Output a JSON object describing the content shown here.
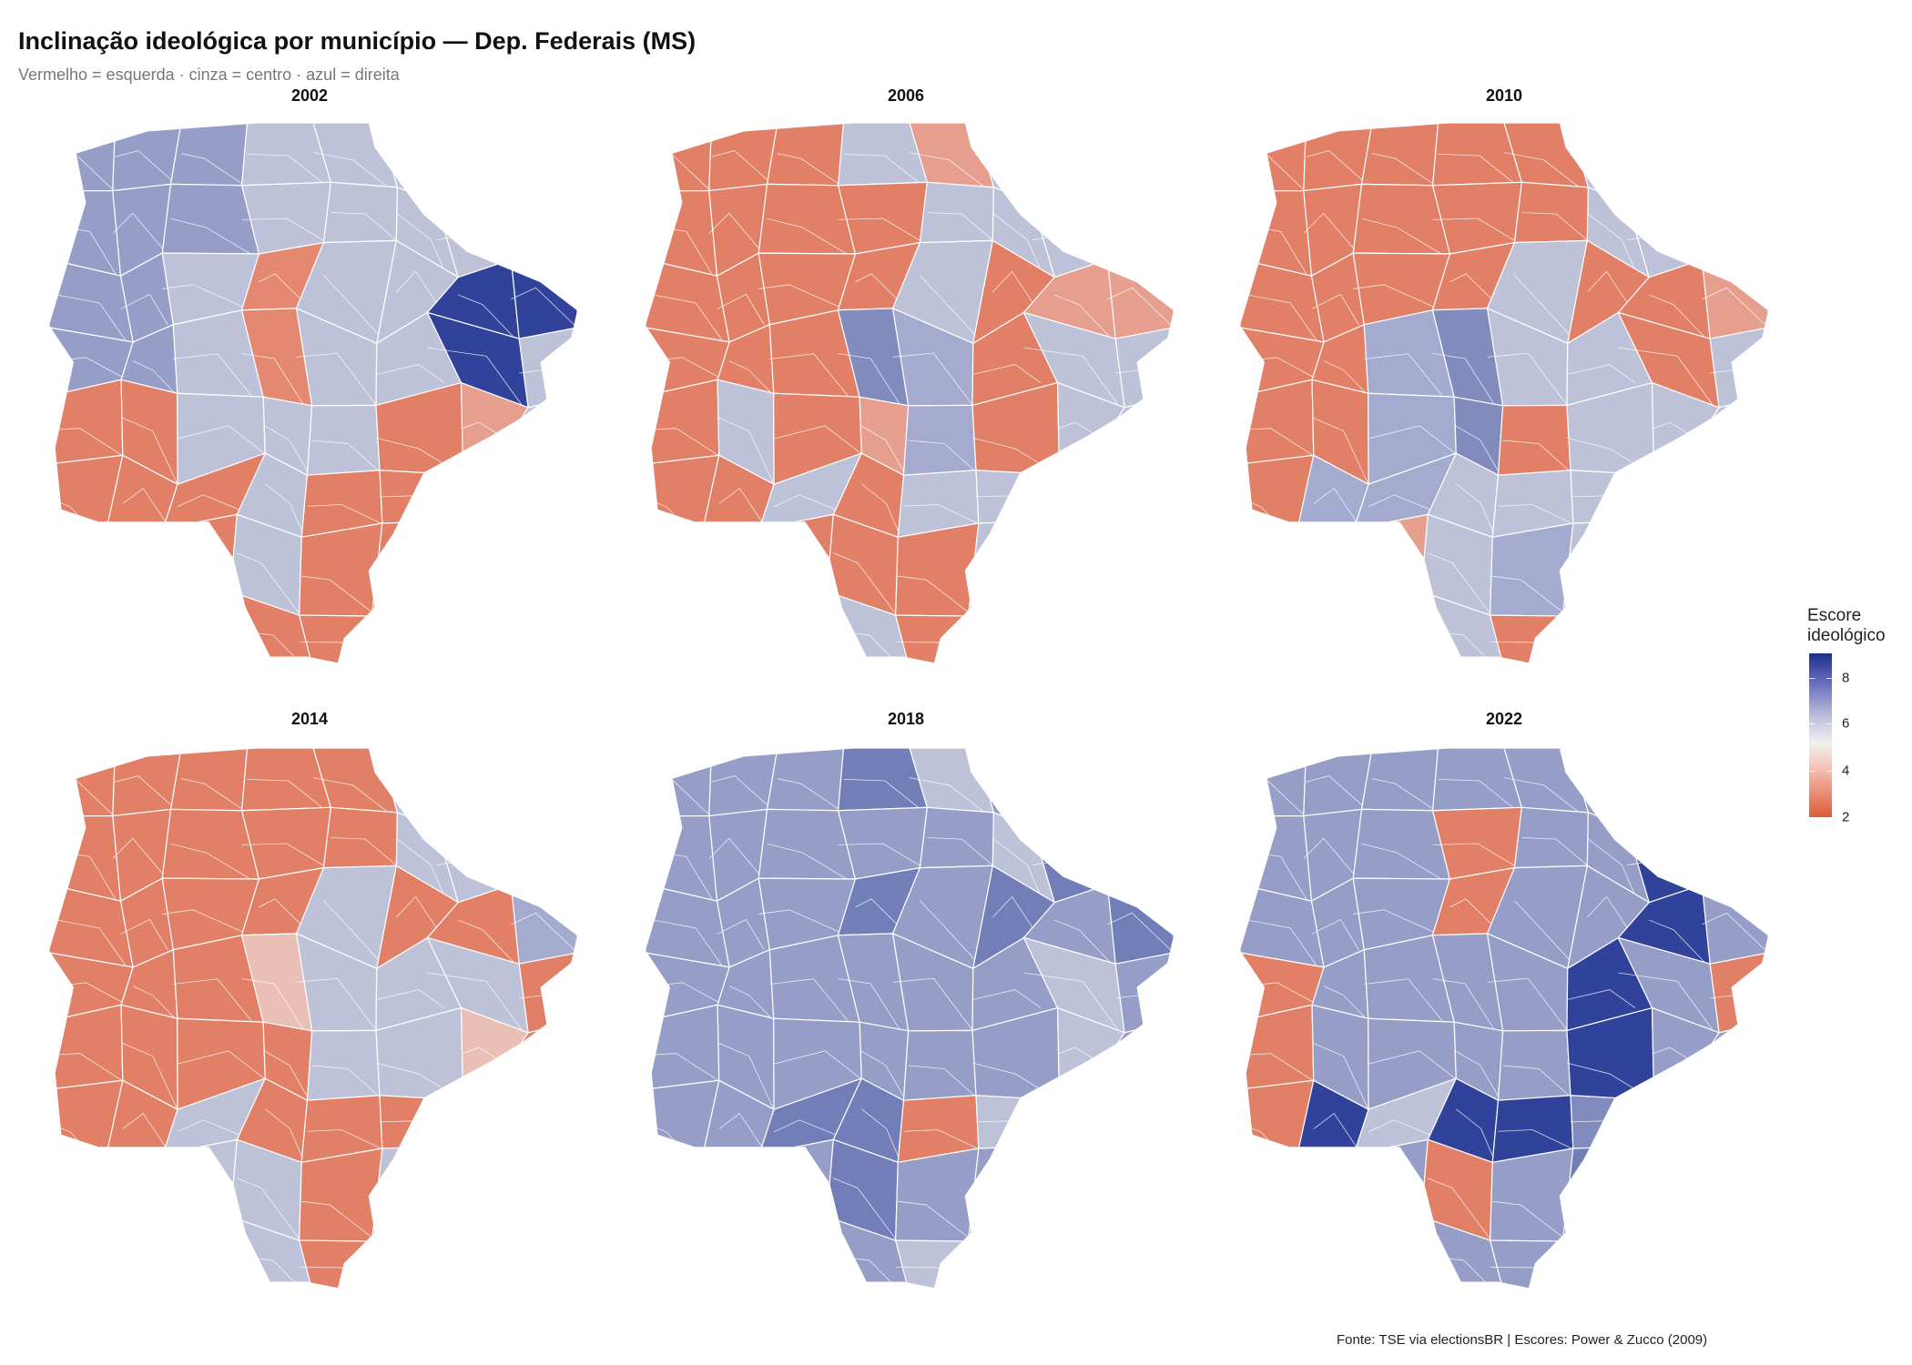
{
  "title": "Inclinação ideológica por município — Dep. Federais (MS)",
  "subtitle": "Vermelho = esquerda · cinza = centro · azul = direita",
  "caption": "Fonte: TSE via electionsBR | Escores: Power & Zucco (2009)",
  "legend": {
    "title_line1": "Escore",
    "title_line2": "ideológico",
    "ticks": [
      "8",
      "6",
      "4",
      "2"
    ],
    "range": [
      2,
      8.9
    ],
    "colors": {
      "low": "#de5a3a",
      "mid": "#f0f0f0",
      "high": "#1b2e90"
    },
    "placement": "right"
  },
  "chart_data": {
    "type": "choropleth",
    "title": "Inclinação ideológica por município — Dep. Federais (MS)",
    "note": "",
    "facets": [
      {
        "year": "2002",
        "scores": [
          [
            6.8,
            6.8,
            6.8,
            6,
            6,
            6,
            6,
            6
          ],
          [
            6.8,
            6.8,
            6.8,
            6,
            6,
            6,
            6,
            6
          ],
          [
            6.8,
            6.8,
            6,
            3,
            6,
            6,
            8.8,
            8.8
          ],
          [
            6.8,
            6.8,
            6,
            3,
            6,
            6,
            8.8,
            6
          ],
          [
            2.8,
            2.8,
            6,
            6,
            6,
            2.8,
            3.5,
            6
          ],
          [
            2.8,
            2.8,
            2.8,
            6,
            2.8,
            2.8,
            3.5,
            6
          ],
          [
            2.8,
            6,
            2.8,
            6,
            2.8,
            2.8,
            6,
            6
          ],
          [
            6,
            6,
            6,
            2.8,
            2.8,
            2.8,
            6,
            6
          ]
        ]
      },
      {
        "year": "2006",
        "scores": [
          [
            2.8,
            2.8,
            2.8,
            6,
            3.5,
            6,
            6,
            6
          ],
          [
            2.8,
            2.8,
            2.8,
            2.8,
            6,
            6,
            6,
            3.5
          ],
          [
            2.8,
            2.8,
            2.8,
            2.8,
            6,
            2.8,
            3.5,
            3.5
          ],
          [
            2.8,
            2.8,
            2.8,
            7.2,
            6.5,
            2.8,
            6,
            6
          ],
          [
            2.8,
            6,
            2.8,
            3.5,
            6.5,
            2.8,
            6,
            6
          ],
          [
            2.8,
            2.8,
            6,
            2.8,
            6,
            6,
            6,
            6
          ],
          [
            2.8,
            6,
            2.8,
            2.8,
            2.8,
            6,
            6,
            6
          ],
          [
            6,
            2.8,
            2.8,
            6,
            2.8,
            6,
            6,
            6
          ]
        ]
      },
      {
        "year": "2010",
        "scores": [
          [
            2.8,
            2.8,
            2.8,
            2.8,
            2.8,
            6,
            6,
            6
          ],
          [
            2.8,
            2.8,
            2.8,
            2.8,
            2.8,
            6,
            6,
            6
          ],
          [
            2.8,
            2.8,
            2.8,
            2.8,
            6,
            2.8,
            2.8,
            3.5
          ],
          [
            2.8,
            2.8,
            6.5,
            7.2,
            6,
            6,
            2.8,
            6
          ],
          [
            2.8,
            2.8,
            6.5,
            7.2,
            2.8,
            6,
            6,
            6
          ],
          [
            2.8,
            6.5,
            6.5,
            6,
            6,
            6,
            6,
            6
          ],
          [
            6,
            2.8,
            3.5,
            6,
            6.5,
            6,
            6,
            6
          ],
          [
            6,
            6.5,
            2.8,
            6,
            2.8,
            6,
            6,
            6
          ]
        ]
      },
      {
        "year": "2014",
        "scores": [
          [
            2.8,
            2.8,
            2.8,
            2.8,
            2.8,
            6,
            6,
            6
          ],
          [
            2.8,
            2.8,
            2.8,
            2.8,
            2.8,
            6,
            6,
            6
          ],
          [
            2.8,
            2.8,
            2.8,
            2.8,
            6,
            2.8,
            2.8,
            6.5
          ],
          [
            2.8,
            2.8,
            2.8,
            4.2,
            6,
            6,
            6,
            2.8
          ],
          [
            2.8,
            2.8,
            2.8,
            2.8,
            6,
            6,
            4.2,
            2.8
          ],
          [
            2.8,
            2.8,
            6,
            2.8,
            2.8,
            2.8,
            6,
            6
          ],
          [
            6,
            6,
            6,
            6,
            2.8,
            6,
            6,
            6
          ],
          [
            6,
            6,
            2.8,
            6,
            2.8,
            6,
            6,
            6
          ]
        ]
      },
      {
        "year": "2018",
        "scores": [
          [
            6.8,
            6.8,
            6.8,
            7.5,
            6,
            6.8,
            6.8,
            6.8
          ],
          [
            6.8,
            6.8,
            6.8,
            6.8,
            6.8,
            6,
            7.5,
            6.8
          ],
          [
            6.8,
            6.8,
            6.8,
            7.5,
            6.8,
            7.5,
            6.8,
            7.5
          ],
          [
            6.8,
            6.8,
            6.8,
            6.8,
            6.8,
            6.8,
            6,
            6.8
          ],
          [
            6.8,
            6.8,
            6.8,
            6.8,
            6.8,
            6.8,
            6,
            6.8
          ],
          [
            6.8,
            6.8,
            7.5,
            7.5,
            2.8,
            6,
            6.8,
            6.8
          ],
          [
            6.8,
            6.8,
            6.8,
            7.5,
            6.8,
            6.8,
            6.8,
            6.8
          ],
          [
            6.8,
            2.8,
            4.2,
            6.8,
            6,
            6.8,
            6.8,
            6.8
          ]
        ]
      },
      {
        "year": "2022",
        "scores": [
          [
            6.8,
            6.8,
            6.8,
            6.8,
            6.8,
            6.8,
            6.8,
            6.8
          ],
          [
            6.8,
            6.8,
            6.8,
            2.8,
            6.8,
            6.8,
            8.8,
            6.8
          ],
          [
            6.8,
            6.8,
            6.8,
            2.8,
            6.8,
            6.8,
            8.8,
            6.8
          ],
          [
            2.8,
            6.8,
            6.8,
            6.8,
            6.8,
            8.8,
            6.8,
            2.8
          ],
          [
            2.8,
            6.8,
            6.8,
            6.8,
            6.8,
            8.8,
            6.8,
            6.8
          ],
          [
            2.8,
            8.8,
            6,
            8.8,
            8.8,
            7.2,
            6.8,
            6.8
          ],
          [
            6.8,
            6.8,
            6.8,
            2.8,
            6.8,
            7.5,
            6.8,
            6.8
          ],
          [
            6.8,
            6.8,
            2.8,
            6.8,
            6.8,
            6.8,
            6.8,
            6.8
          ]
        ]
      }
    ]
  }
}
